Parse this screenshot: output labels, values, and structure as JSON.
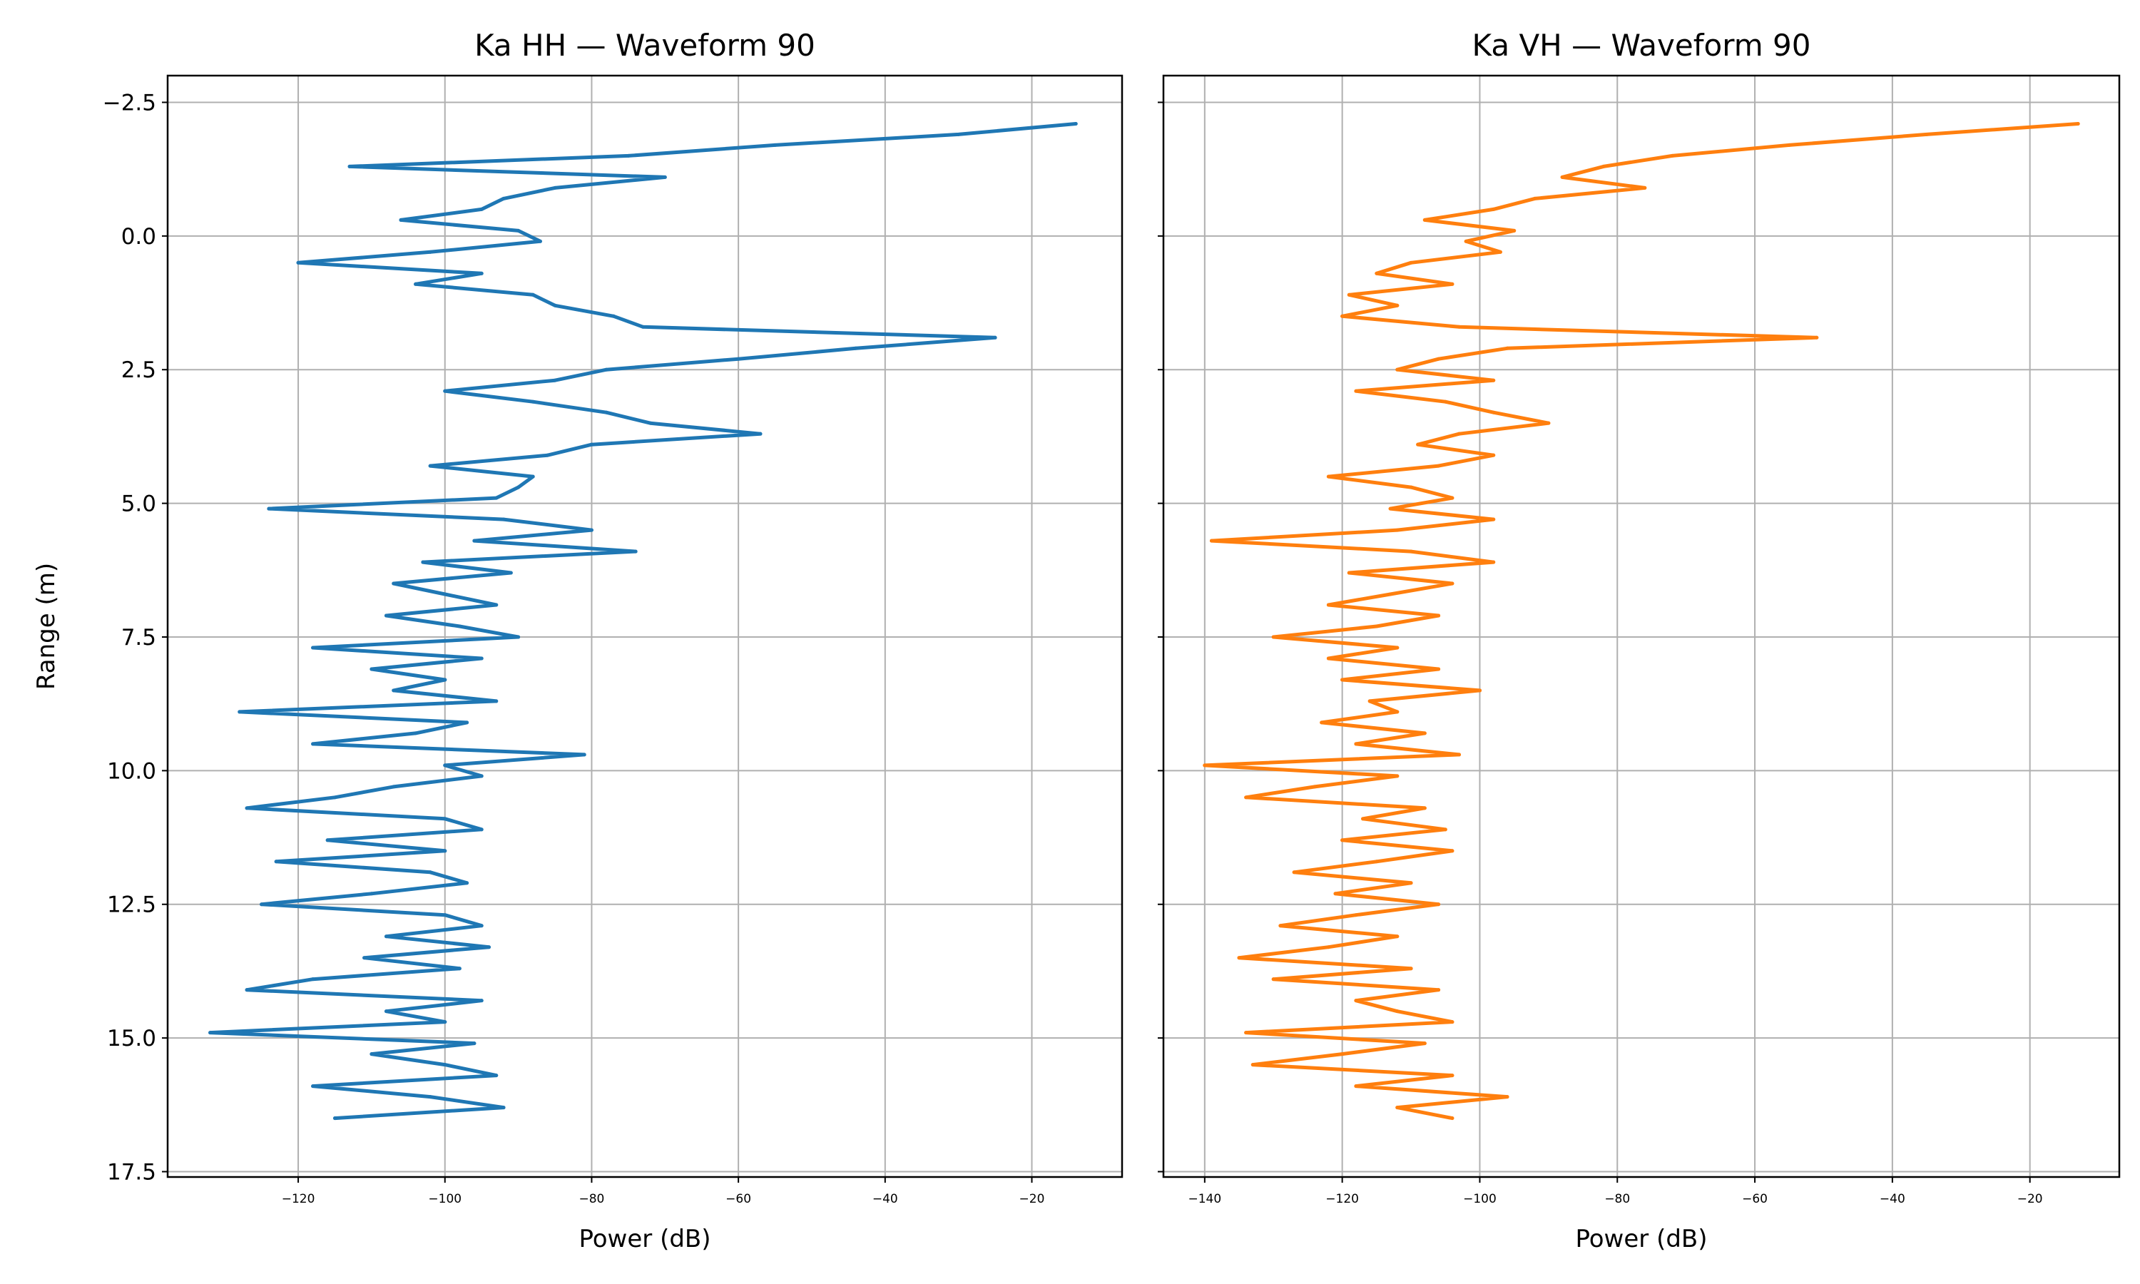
{
  "chart_data": [
    {
      "type": "line",
      "title": "Ka HH — Waveform 90",
      "xlabel": "Power (dB)",
      "ylabel": "Range (m)",
      "xlim": [
        -137.8,
        -7.7
      ],
      "ylim": [
        17.6,
        -3.0
      ],
      "y_inverted": true,
      "grid": true,
      "color": "#1f77b4",
      "xticks": [
        -120,
        -100,
        -80,
        -60,
        -40,
        -20
      ],
      "xtick_labels": [
        "−120",
        "−100",
        "−80",
        "−60",
        "−40",
        "−20"
      ],
      "yticks": [
        -2.5,
        0,
        2.5,
        5,
        7.5,
        10,
        12.5,
        15,
        17.5
      ],
      "ytick_labels": [
        "−2.5",
        "0.0",
        "2.5",
        "5.0",
        "7.5",
        "10.0",
        "12.5",
        "15.0",
        "17.5"
      ],
      "range_start": -2.1,
      "range_step": 0.2,
      "values": [
        -14,
        -30,
        -55,
        -75,
        -113,
        -70,
        -85,
        -92,
        -95,
        -106,
        -90,
        -87,
        -102,
        -120,
        -95,
        -104,
        -88,
        -85,
        -77,
        -73,
        -25,
        -44,
        -60,
        -78,
        -85,
        -100,
        -88,
        -78,
        -72,
        -57,
        -80,
        -86,
        -102,
        -88,
        -90,
        -93,
        -124,
        -92,
        -80,
        -96,
        -74,
        -103,
        -91,
        -107,
        -100,
        -93,
        -108,
        -98,
        -90,
        -118,
        -95,
        -110,
        -100,
        -107,
        -93,
        -128,
        -97,
        -104,
        -118,
        -81,
        -100,
        -95,
        -107,
        -115,
        -127,
        -100,
        -95,
        -116,
        -100,
        -123,
        -102,
        -97,
        -110,
        -125,
        -100,
        -95,
        -108,
        -94,
        -111,
        -98,
        -118,
        -127,
        -95,
        -108,
        -100,
        -132,
        -96,
        -110,
        -100,
        -93,
        -118,
        -102,
        -92,
        -115
      ]
    },
    {
      "type": "line",
      "title": "Ka VH — Waveform 90",
      "xlabel": "Power (dB)",
      "ylabel": "",
      "xlim": [
        -146.0,
        -7.0
      ],
      "ylim": [
        17.6,
        -3.0
      ],
      "y_inverted": true,
      "grid": true,
      "color": "#ff7f0e",
      "xticks": [
        -140,
        -120,
        -100,
        -80,
        -60,
        -40,
        -20
      ],
      "xtick_labels": [
        "−140",
        "−120",
        "−100",
        "−80",
        "−60",
        "−40",
        "−20"
      ],
      "yticks": [
        -2.5,
        0,
        2.5,
        5,
        7.5,
        10,
        12.5,
        15,
        17.5
      ],
      "ytick_labels": [],
      "range_start": -2.1,
      "range_step": 0.2,
      "values": [
        -13,
        -35,
        -55,
        -72,
        -82,
        -88,
        -76,
        -92,
        -98,
        -108,
        -95,
        -102,
        -97,
        -110,
        -115,
        -104,
        -119,
        -112,
        -120,
        -103,
        -51,
        -96,
        -106,
        -112,
        -98,
        -118,
        -105,
        -98,
        -90,
        -103,
        -109,
        -98,
        -106,
        -122,
        -110,
        -104,
        -113,
        -98,
        -112,
        -139,
        -110,
        -98,
        -119,
        -104,
        -113,
        -122,
        -106,
        -115,
        -130,
        -112,
        -122,
        -106,
        -120,
        -100,
        -116,
        -112,
        -123,
        -108,
        -118,
        -103,
        -140,
        -112,
        -124,
        -134,
        -108,
        -117,
        -105,
        -120,
        -104,
        -115,
        -127,
        -110,
        -121,
        -106,
        -118,
        -129,
        -112,
        -122,
        -135,
        -110,
        -130,
        -106,
        -118,
        -112,
        -104,
        -134,
        -108,
        -120,
        -133,
        -104,
        -118,
        -96,
        -112,
        -104
      ]
    }
  ]
}
